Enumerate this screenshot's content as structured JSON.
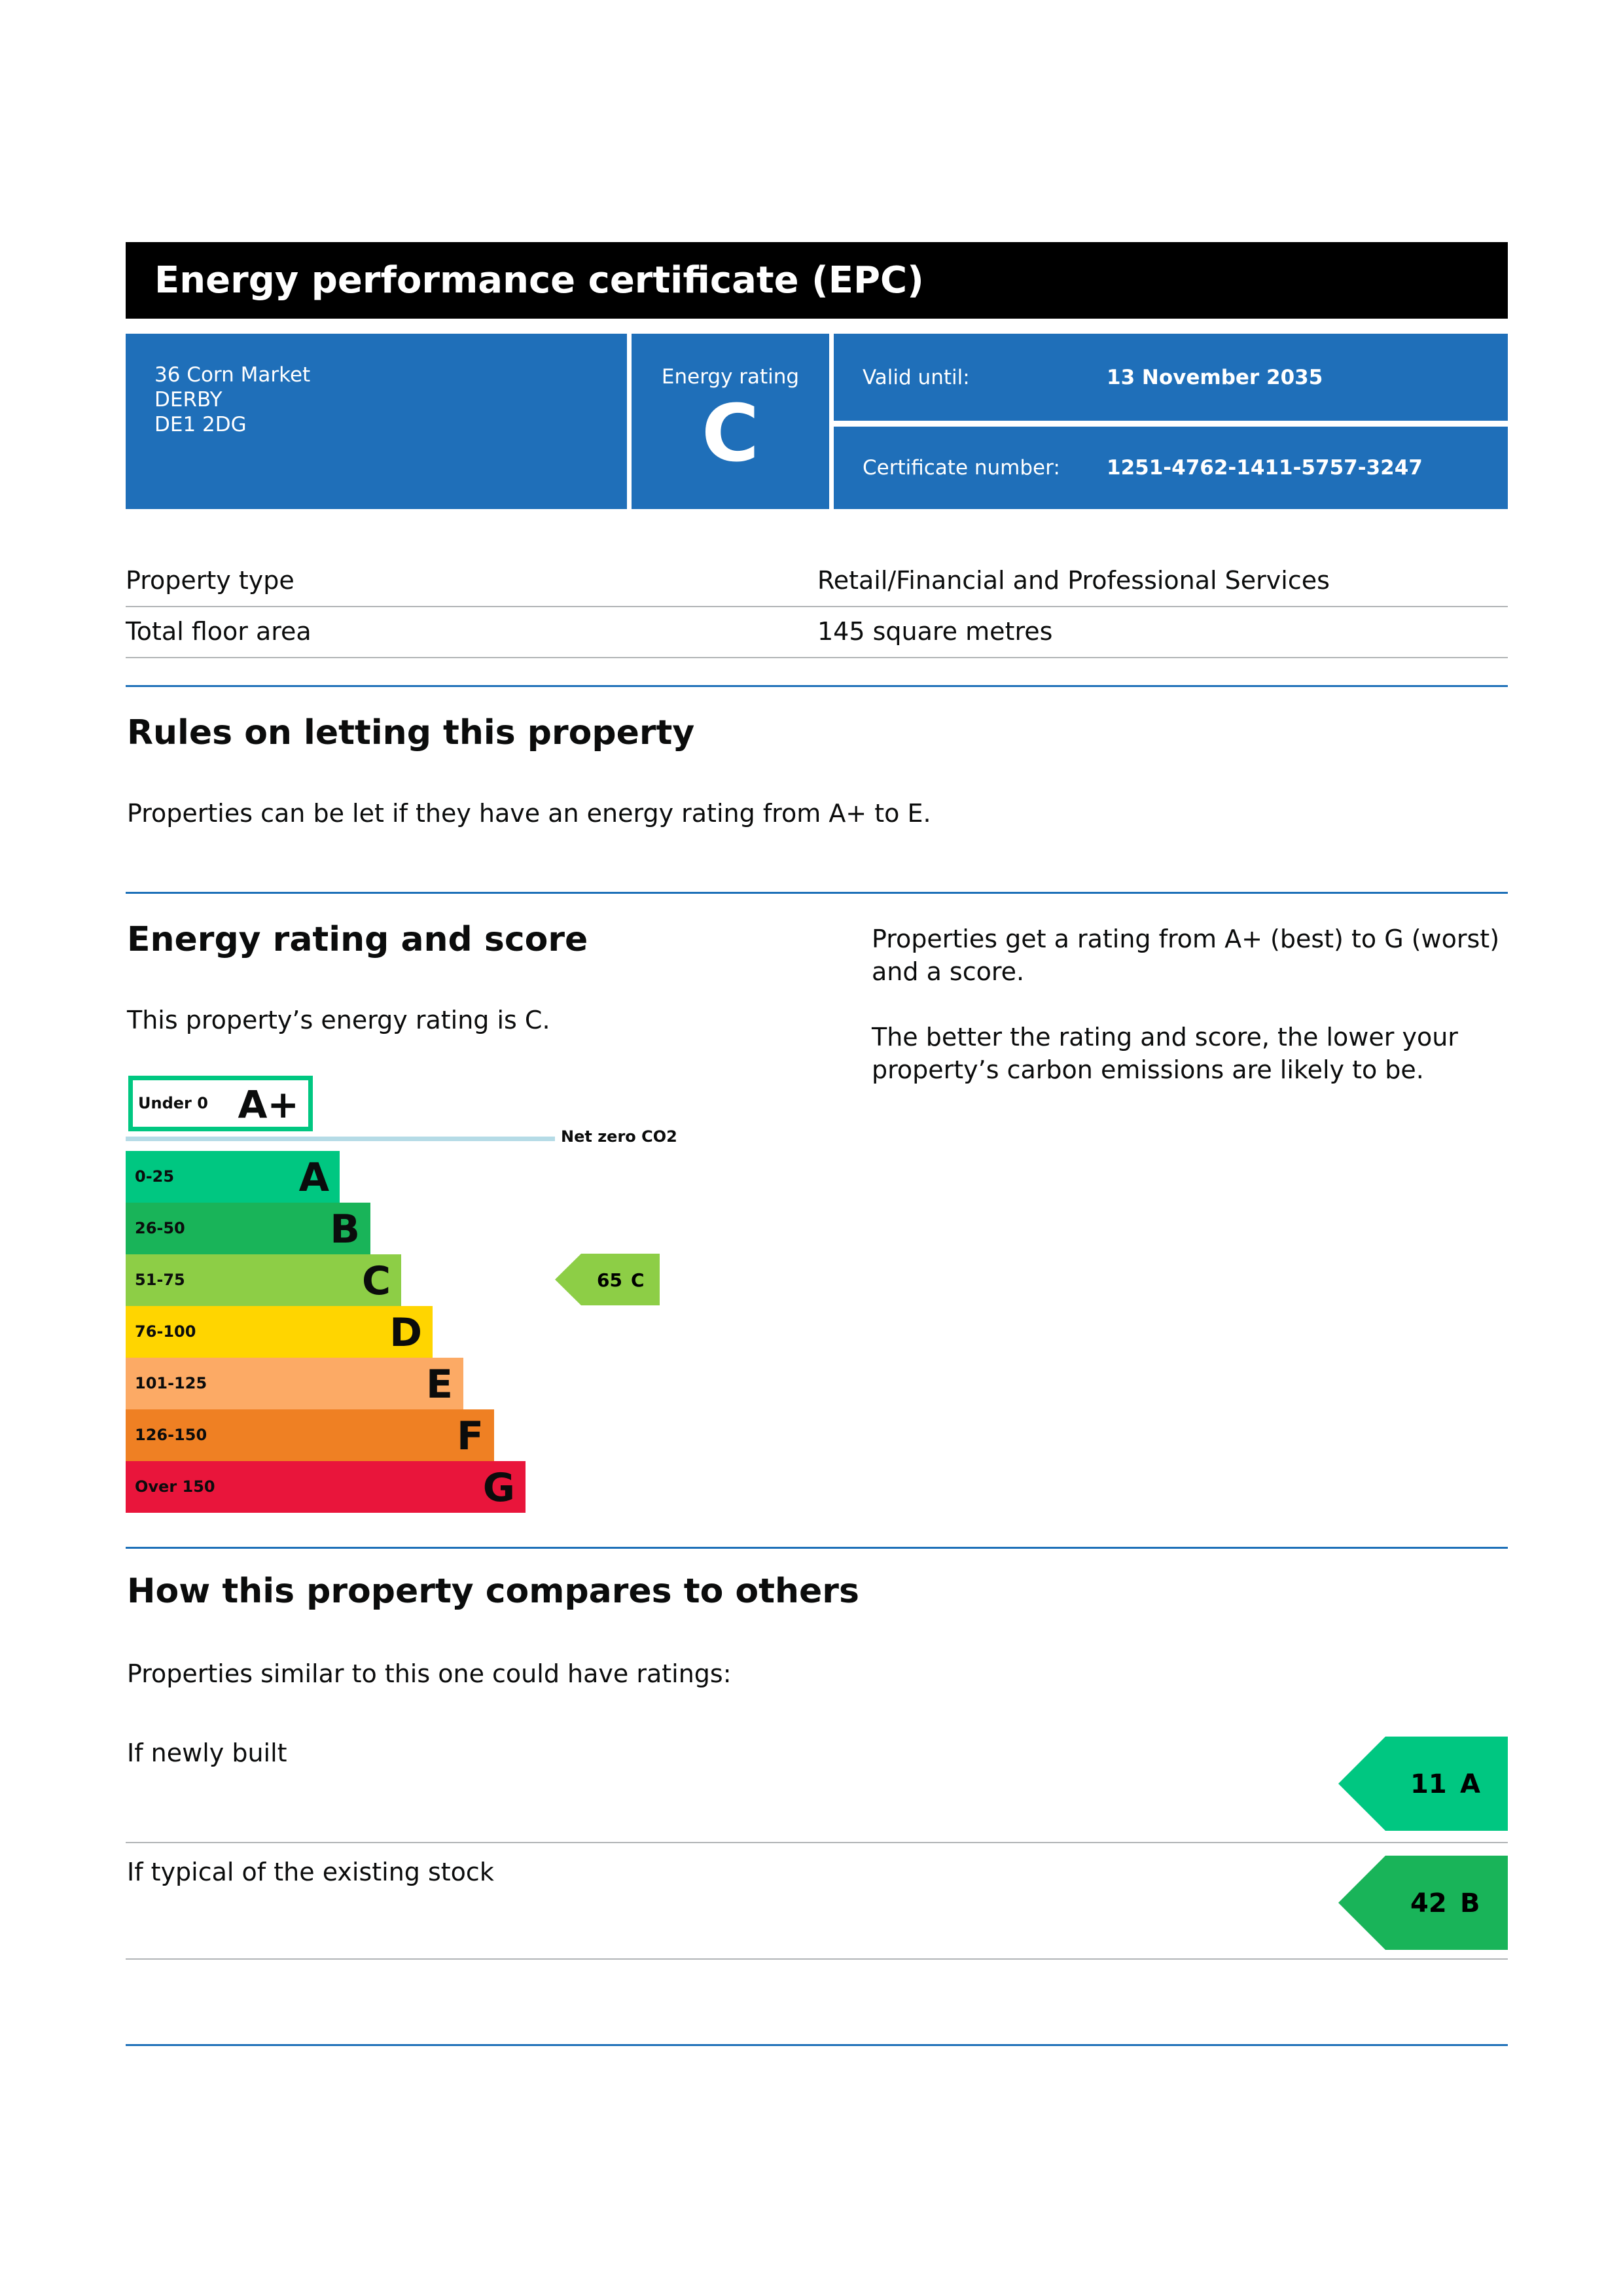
{
  "header": {
    "title": "Energy performance certificate (EPC)"
  },
  "address": {
    "line1": "36 Corn Market",
    "line2": "DERBY",
    "line3": "DE1 2DG"
  },
  "energy_rating": {
    "label": "Energy rating",
    "value": "C"
  },
  "valid_until": {
    "label": "Valid until:",
    "value": "13 November 2035"
  },
  "certificate": {
    "label": "Certificate number:",
    "value": "1251-4762-1411-5757-3247"
  },
  "property": [
    {
      "label": "Property type",
      "value": "Retail/Financial and Professional Services"
    },
    {
      "label": "Total floor area",
      "value": "145 square metres"
    }
  ],
  "rules": {
    "heading": "Rules on letting this property",
    "text": "Properties can be let if they have an energy rating from A+ to E."
  },
  "score_section": {
    "heading": "Energy rating and score",
    "text": "This property’s energy rating is C.",
    "side_text1": "Properties get a rating from A+ (best) to G (worst) and a score.",
    "side_text2": "The better the rating and score, the lower your property’s carbon emissions are likely to be."
  },
  "scale": {
    "aplus": {
      "range": "Under 0",
      "letter": "A+",
      "color": "#00c781"
    },
    "net_zero_label": "Net zero CO2",
    "net_zero_color": "#b5dbe6",
    "bands": [
      {
        "range": "0-25",
        "letter": "A",
        "color": "#00c781"
      },
      {
        "range": "26-50",
        "letter": "B",
        "color": "#19b459"
      },
      {
        "range": "51-75",
        "letter": "C",
        "color": "#8dce46"
      },
      {
        "range": "76-100",
        "letter": "D",
        "color": "#ffd500"
      },
      {
        "range": "101-125",
        "letter": "E",
        "color": "#fcaa65"
      },
      {
        "range": "126-150",
        "letter": "F",
        "color": "#ef8023"
      },
      {
        "range": "Over 150",
        "letter": "G",
        "color": "#e9153b"
      }
    ],
    "current": {
      "score": "65",
      "letter": "C",
      "color": "#8dce46"
    }
  },
  "compare": {
    "heading": "How this property compares to others",
    "text": "Properties similar to this one could have ratings:",
    "items": [
      {
        "label": "If newly built",
        "score": "11",
        "letter": "A",
        "color": "#00c781"
      },
      {
        "label": "If typical of the existing stock",
        "score": "42",
        "letter": "B",
        "color": "#19b459"
      }
    ]
  }
}
